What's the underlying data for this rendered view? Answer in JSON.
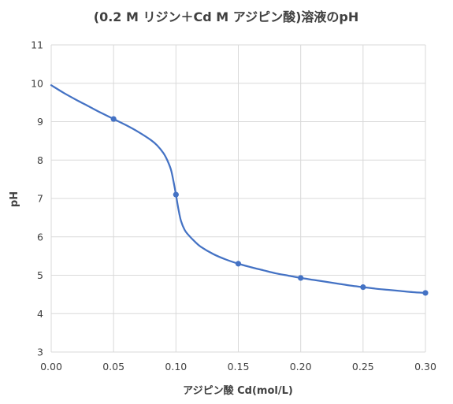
{
  "chart_data": {
    "type": "line",
    "title": "(0.2 M リジン＋Cd M アジピン酸)溶液のpH",
    "xlabel": "アジピン酸 Cd(mol/L)",
    "ylabel": "pH",
    "xlim": [
      0,
      0.3
    ],
    "ylim": [
      3,
      11
    ],
    "x_ticks": [
      "0.00",
      "0.05",
      "0.10",
      "0.15",
      "0.20",
      "0.25",
      "0.30"
    ],
    "y_ticks": [
      "3",
      "4",
      "5",
      "6",
      "7",
      "8",
      "9",
      "10",
      "11"
    ],
    "grid": true,
    "legend": "none",
    "series_color": "#4472C4",
    "series": [
      {
        "points": [
          [
            0.05,
            9.07
          ],
          [
            0.1,
            7.1
          ],
          [
            0.15,
            5.3
          ],
          [
            0.2,
            4.93
          ],
          [
            0.25,
            4.69
          ],
          [
            0.3,
            4.54
          ]
        ],
        "curve": [
          [
            0.0,
            9.95
          ],
          [
            0.01,
            9.75
          ],
          [
            0.02,
            9.57
          ],
          [
            0.03,
            9.4
          ],
          [
            0.04,
            9.23
          ],
          [
            0.05,
            9.07
          ],
          [
            0.06,
            8.91
          ],
          [
            0.07,
            8.73
          ],
          [
            0.08,
            8.52
          ],
          [
            0.085,
            8.38
          ],
          [
            0.09,
            8.18
          ],
          [
            0.093,
            8.0
          ],
          [
            0.096,
            7.75
          ],
          [
            0.098,
            7.45
          ],
          [
            0.1,
            7.1
          ],
          [
            0.102,
            6.72
          ],
          [
            0.104,
            6.42
          ],
          [
            0.107,
            6.18
          ],
          [
            0.11,
            6.05
          ],
          [
            0.115,
            5.88
          ],
          [
            0.12,
            5.74
          ],
          [
            0.13,
            5.55
          ],
          [
            0.14,
            5.41
          ],
          [
            0.15,
            5.3
          ],
          [
            0.16,
            5.21
          ],
          [
            0.17,
            5.13
          ],
          [
            0.18,
            5.05
          ],
          [
            0.19,
            4.99
          ],
          [
            0.2,
            4.93
          ],
          [
            0.21,
            4.88
          ],
          [
            0.22,
            4.83
          ],
          [
            0.23,
            4.78
          ],
          [
            0.24,
            4.73
          ],
          [
            0.25,
            4.69
          ],
          [
            0.26,
            4.65
          ],
          [
            0.27,
            4.62
          ],
          [
            0.28,
            4.59
          ],
          [
            0.29,
            4.56
          ],
          [
            0.3,
            4.54
          ]
        ]
      }
    ]
  }
}
